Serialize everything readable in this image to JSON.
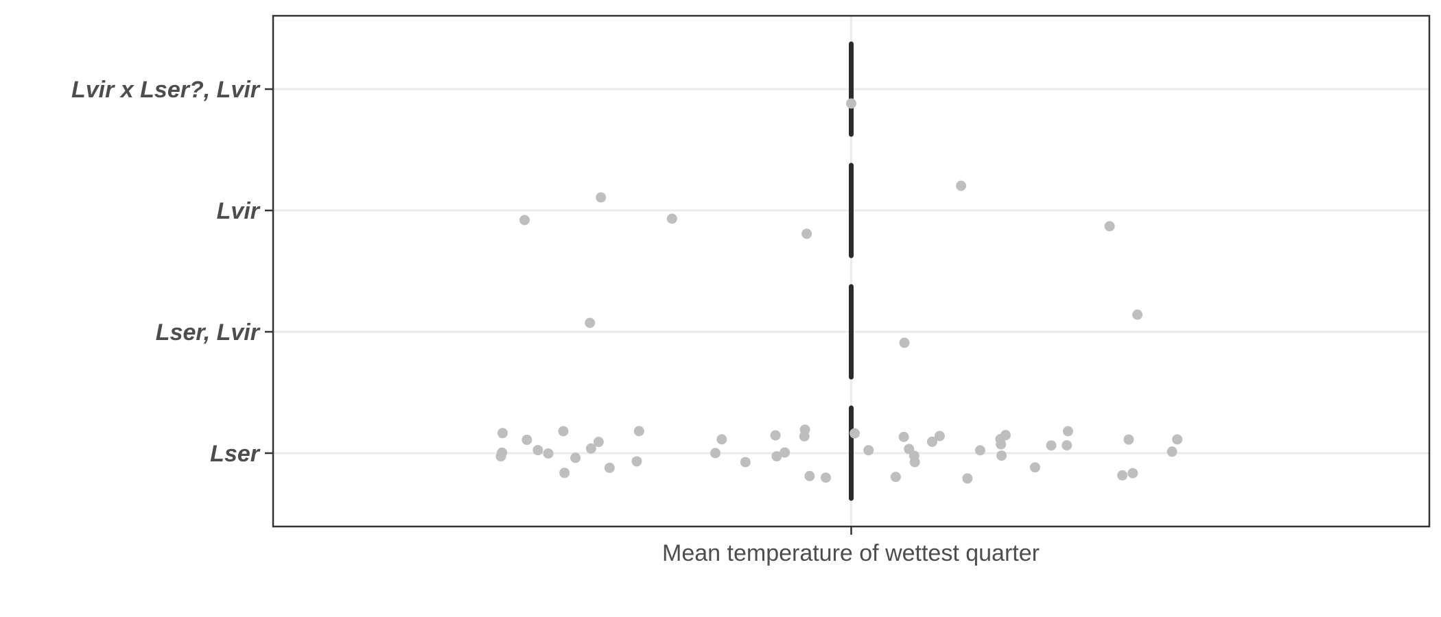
{
  "chart_data": {
    "type": "scatter",
    "subtype": "jittered strip plot with vertical reference segments",
    "xlabel": "Mean temperature of wettest quarter",
    "x_tick_labels": [
      ""
    ],
    "categories": [
      "Lvir x Lser?, Lvir",
      "Lvir",
      "Lser, Lvir",
      "Lser"
    ],
    "grid": true,
    "point_color": "#bebebe",
    "segment_color": "#2b2b2b",
    "grid_color": "#ebebeb",
    "xlim": [
      -1,
      1
    ],
    "reference_x": 0,
    "series": [
      {
        "category": "Lvir x Lser?, Lvir",
        "x": [
          0.0
        ]
      },
      {
        "category": "Lvir",
        "x": [
          -0.565,
          -0.433,
          -0.31,
          -0.077,
          0.19,
          0.447
        ]
      },
      {
        "category": "Lser, Lvir",
        "x": [
          -0.452,
          0.092,
          0.495
        ]
      },
      {
        "category": "Lser",
        "x": [
          -0.604,
          -0.606,
          -0.603,
          -0.561,
          -0.542,
          -0.524,
          -0.498,
          -0.496,
          -0.477,
          -0.45,
          -0.437,
          -0.418,
          -0.371,
          -0.367,
          -0.235,
          -0.224,
          -0.183,
          -0.131,
          -0.129,
          -0.115,
          -0.081,
          -0.08,
          -0.072,
          -0.044,
          0.006,
          0.03,
          0.077,
          0.091,
          0.1,
          0.109,
          0.11,
          0.14,
          0.153,
          0.201,
          0.223,
          0.258,
          0.26,
          0.259,
          0.267,
          0.318,
          0.346,
          0.373,
          0.375,
          0.469,
          0.48,
          0.487,
          0.555,
          0.564
        ]
      }
    ]
  }
}
